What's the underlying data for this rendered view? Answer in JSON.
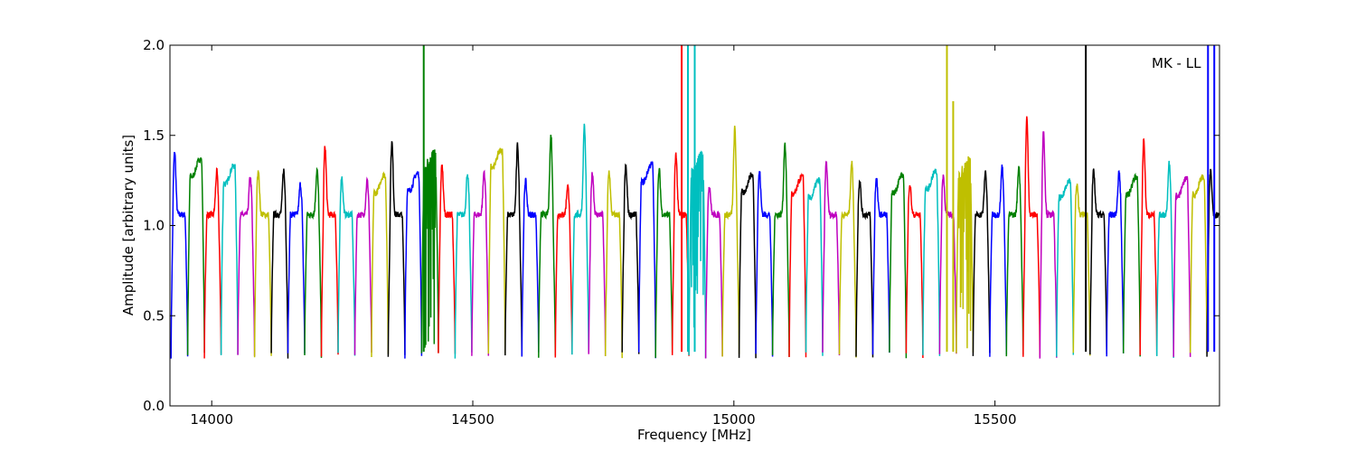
{
  "chart_data": {
    "type": "line",
    "title": "",
    "annotation": "MK - LL",
    "xlabel": "Frequency [MHz]",
    "ylabel": "Amplitude [arbitrary units]",
    "xlim": [
      13920,
      15930
    ],
    "ylim": [
      0.0,
      2.0
    ],
    "xticks": [
      14000,
      14500,
      15000,
      15500
    ],
    "yticks": [
      0.0,
      0.5,
      1.0,
      1.5,
      2.0
    ],
    "ytick_labels": [
      "0.0",
      "0.5",
      "1.0",
      "1.5",
      "2.0"
    ],
    "grid": false,
    "legend": "none",
    "palette": [
      "#0000ff",
      "#008000",
      "#ff0000",
      "#00bfbf",
      "#bf00bf",
      "#bfbf00",
      "#000000"
    ],
    "bandwidth_mhz": 32,
    "bands": [
      {
        "x0": 13922,
        "peak": 1.41,
        "shape": "left",
        "color": "#0000ff"
      },
      {
        "x0": 13954,
        "peak": 1.32,
        "shape": "flat",
        "color": "#008000"
      },
      {
        "x0": 13986,
        "peak": 1.3,
        "shape": "right",
        "color": "#ff0000"
      },
      {
        "x0": 14018,
        "peak": 1.28,
        "shape": "flat",
        "color": "#00bfbf"
      },
      {
        "x0": 14050,
        "peak": 1.27,
        "shape": "right",
        "color": "#bf00bf"
      },
      {
        "x0": 14082,
        "peak": 1.31,
        "shape": "left",
        "color": "#bfbf00"
      },
      {
        "x0": 14114,
        "peak": 1.31,
        "shape": "right",
        "color": "#000000"
      },
      {
        "x0": 14146,
        "peak": 1.23,
        "shape": "right",
        "color": "#0000ff"
      },
      {
        "x0": 14178,
        "peak": 1.31,
        "shape": "right",
        "color": "#008000"
      },
      {
        "x0": 14210,
        "peak": 1.44,
        "shape": "left",
        "color": "#ff0000"
      },
      {
        "x0": 14242,
        "peak": 1.27,
        "shape": "left",
        "color": "#00bfbf"
      },
      {
        "x0": 14274,
        "peak": 1.25,
        "shape": "right",
        "color": "#bf00bf"
      },
      {
        "x0": 14306,
        "peak": 1.23,
        "shape": "flat",
        "color": "#bfbf00"
      },
      {
        "x0": 14338,
        "peak": 1.46,
        "shape": "left",
        "color": "#000000"
      },
      {
        "x0": 14370,
        "peak": 1.24,
        "shape": "flat",
        "color": "#0000ff"
      },
      {
        "x0": 14402,
        "peak": 1.36,
        "shape": "spiky",
        "color": "#008000"
      },
      {
        "x0": 14434,
        "peak": 1.34,
        "shape": "left",
        "color": "#ff0000"
      },
      {
        "x0": 14466,
        "peak": 1.29,
        "shape": "right",
        "color": "#00bfbf"
      },
      {
        "x0": 14498,
        "peak": 1.3,
        "shape": "right",
        "color": "#bf00bf"
      },
      {
        "x0": 14530,
        "peak": 1.37,
        "shape": "flat",
        "color": "#bfbf00"
      },
      {
        "x0": 14562,
        "peak": 1.45,
        "shape": "right",
        "color": "#000000"
      },
      {
        "x0": 14594,
        "peak": 1.25,
        "shape": "left",
        "color": "#0000ff"
      },
      {
        "x0": 14626,
        "peak": 1.5,
        "shape": "right",
        "color": "#008000"
      },
      {
        "x0": 14658,
        "peak": 1.22,
        "shape": "right",
        "color": "#ff0000"
      },
      {
        "x0": 14690,
        "peak": 1.56,
        "shape": "right",
        "color": "#00bfbf"
      },
      {
        "x0": 14722,
        "peak": 1.29,
        "shape": "left",
        "color": "#bf00bf"
      },
      {
        "x0": 14754,
        "peak": 1.3,
        "shape": "left",
        "color": "#bfbf00"
      },
      {
        "x0": 14786,
        "peak": 1.33,
        "shape": "left",
        "color": "#000000"
      },
      {
        "x0": 14818,
        "peak": 1.29,
        "shape": "flat",
        "color": "#0000ff"
      },
      {
        "x0": 14850,
        "peak": 1.31,
        "shape": "left",
        "color": "#008000"
      },
      {
        "x0": 14882,
        "peak": 1.4,
        "shape": "left",
        "color": "#ff0000"
      },
      {
        "x0": 14914,
        "peak": 1.35,
        "shape": "spiky",
        "color": "#00bfbf"
      },
      {
        "x0": 14946,
        "peak": 1.22,
        "shape": "left",
        "color": "#bf00bf"
      },
      {
        "x0": 14978,
        "peak": 1.54,
        "shape": "right",
        "color": "#bfbf00"
      },
      {
        "x0": 15010,
        "peak": 1.23,
        "shape": "flat",
        "color": "#000000"
      },
      {
        "x0": 15042,
        "peak": 1.3,
        "shape": "left",
        "color": "#0000ff"
      },
      {
        "x0": 15074,
        "peak": 1.46,
        "shape": "right",
        "color": "#008000"
      },
      {
        "x0": 15106,
        "peak": 1.22,
        "shape": "flat",
        "color": "#ff0000"
      },
      {
        "x0": 15138,
        "peak": 1.2,
        "shape": "flat",
        "color": "#00bfbf"
      },
      {
        "x0": 15170,
        "peak": 1.35,
        "shape": "left",
        "color": "#bf00bf"
      },
      {
        "x0": 15202,
        "peak": 1.35,
        "shape": "right",
        "color": "#bfbf00"
      },
      {
        "x0": 15234,
        "peak": 1.25,
        "shape": "left",
        "color": "#000000"
      },
      {
        "x0": 15266,
        "peak": 1.26,
        "shape": "left",
        "color": "#0000ff"
      },
      {
        "x0": 15298,
        "peak": 1.23,
        "shape": "flat",
        "color": "#008000"
      },
      {
        "x0": 15330,
        "peak": 1.23,
        "shape": "left",
        "color": "#ff0000"
      },
      {
        "x0": 15362,
        "peak": 1.25,
        "shape": "flat",
        "color": "#00bfbf"
      },
      {
        "x0": 15394,
        "peak": 1.28,
        "shape": "left",
        "color": "#bf00bf"
      },
      {
        "x0": 15426,
        "peak": 1.32,
        "shape": "spiky",
        "color": "#bfbf00"
      },
      {
        "x0": 15458,
        "peak": 1.3,
        "shape": "right",
        "color": "#000000"
      },
      {
        "x0": 15490,
        "peak": 1.33,
        "shape": "right",
        "color": "#0000ff"
      },
      {
        "x0": 15522,
        "peak": 1.33,
        "shape": "right",
        "color": "#008000"
      },
      {
        "x0": 15554,
        "peak": 1.6,
        "shape": "left",
        "color": "#ff0000"
      },
      {
        "x0": 15586,
        "peak": 1.53,
        "shape": "left",
        "color": "#bf00bf"
      },
      {
        "x0": 15618,
        "peak": 1.2,
        "shape": "flat",
        "color": "#00bfbf"
      },
      {
        "x0": 15650,
        "peak": 1.22,
        "shape": "left",
        "color": "#bfbf00"
      },
      {
        "x0": 15682,
        "peak": 1.3,
        "shape": "left",
        "color": "#000000"
      },
      {
        "x0": 15714,
        "peak": 1.3,
        "shape": "right",
        "color": "#0000ff"
      },
      {
        "x0": 15746,
        "peak": 1.22,
        "shape": "flat",
        "color": "#008000"
      },
      {
        "x0": 15778,
        "peak": 1.48,
        "shape": "left",
        "color": "#ff0000"
      },
      {
        "x0": 15810,
        "peak": 1.35,
        "shape": "right",
        "color": "#00bfbf"
      },
      {
        "x0": 15842,
        "peak": 1.21,
        "shape": "flat",
        "color": "#bf00bf"
      },
      {
        "x0": 15874,
        "peak": 1.22,
        "shape": "flat",
        "color": "#bfbf00"
      },
      {
        "x0": 15906,
        "peak": 1.3,
        "shape": "left",
        "color": "#000000"
      }
    ],
    "spikes": [
      {
        "x": 14406,
        "y_top": 2.0,
        "color": "#008000"
      },
      {
        "x": 14900,
        "y_top": 2.0,
        "color": "#ff0000"
      },
      {
        "x": 14912,
        "y_top": 2.0,
        "color": "#00bfbf"
      },
      {
        "x": 14925,
        "y_top": 2.0,
        "color": "#00bfbf"
      },
      {
        "x": 15408,
        "y_top": 2.0,
        "color": "#bfbf00"
      },
      {
        "x": 15420,
        "y_top": 1.69,
        "color": "#bfbf00"
      },
      {
        "x": 15674,
        "y_top": 2.0,
        "color": "#000000"
      },
      {
        "x": 15908,
        "y_top": 2.0,
        "color": "#0000ff"
      },
      {
        "x": 15920,
        "y_top": 2.0,
        "color": "#0000ff"
      }
    ]
  }
}
